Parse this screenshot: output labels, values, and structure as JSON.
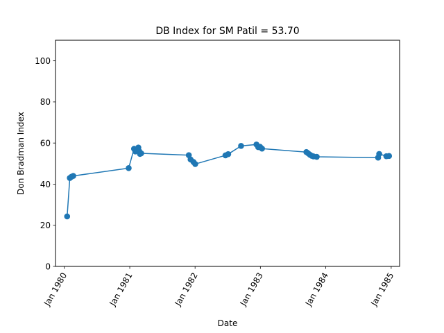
{
  "chart_data": {
    "type": "line",
    "title": "DB Index for SM Patil = 53.70",
    "xlabel": "Date",
    "ylabel": "Don Bradman Index",
    "xlim": [
      "1979-11-13",
      "1985-02-17"
    ],
    "ylim": [
      0,
      110
    ],
    "x_ticks": [
      {
        "date": "1980-01-01",
        "label": "Jan 1980"
      },
      {
        "date": "1981-01-01",
        "label": "Jan 1981"
      },
      {
        "date": "1982-01-01",
        "label": "Jan 1982"
      },
      {
        "date": "1983-01-01",
        "label": "Jan 1983"
      },
      {
        "date": "1984-01-01",
        "label": "Jan 1984"
      },
      {
        "date": "1985-01-01",
        "label": "Jan 1985"
      }
    ],
    "y_ticks": [
      0,
      20,
      40,
      60,
      80,
      100
    ],
    "grid": false,
    "color": "#1f77b4",
    "series": [
      {
        "points": [
          {
            "x": "1980-01-17",
            "y": 24.3
          },
          {
            "x": "1980-02-01",
            "y": 43.0
          },
          {
            "x": "1980-02-10",
            "y": 43.6
          },
          {
            "x": "1980-02-20",
            "y": 44.0
          },
          {
            "x": "1980-12-26",
            "y": 47.8
          },
          {
            "x": "1981-01-25",
            "y": 57.2
          },
          {
            "x": "1981-02-01",
            "y": 55.9
          },
          {
            "x": "1981-02-10",
            "y": 56.4
          },
          {
            "x": "1981-02-18",
            "y": 57.8
          },
          {
            "x": "1981-02-23",
            "y": 56.0
          },
          {
            "x": "1981-02-27",
            "y": 54.7
          },
          {
            "x": "1981-03-06",
            "y": 55.0
          },
          {
            "x": "1981-11-27",
            "y": 54.1
          },
          {
            "x": "1981-12-07",
            "y": 52.0
          },
          {
            "x": "1981-12-23",
            "y": 50.8
          },
          {
            "x": "1982-01-02",
            "y": 49.8
          },
          {
            "x": "1982-06-20",
            "y": 54.0
          },
          {
            "x": "1982-07-05",
            "y": 54.6
          },
          {
            "x": "1982-09-15",
            "y": 58.6
          },
          {
            "x": "1982-12-10",
            "y": 59.3
          },
          {
            "x": "1982-12-20",
            "y": 58.0
          },
          {
            "x": "1982-12-30",
            "y": 58.2
          },
          {
            "x": "1983-01-10",
            "y": 57.3
          },
          {
            "x": "1983-09-15",
            "y": 55.6
          },
          {
            "x": "1983-09-25",
            "y": 55.0
          },
          {
            "x": "1983-10-05",
            "y": 54.3
          },
          {
            "x": "1983-10-15",
            "y": 53.8
          },
          {
            "x": "1983-10-25",
            "y": 53.5
          },
          {
            "x": "1983-11-12",
            "y": 53.3
          },
          {
            "x": "1984-10-20",
            "y": 52.9
          },
          {
            "x": "1984-10-26",
            "y": 54.7
          },
          {
            "x": "1984-12-05",
            "y": 53.6
          },
          {
            "x": "1984-12-20",
            "y": 53.7
          }
        ]
      }
    ]
  }
}
